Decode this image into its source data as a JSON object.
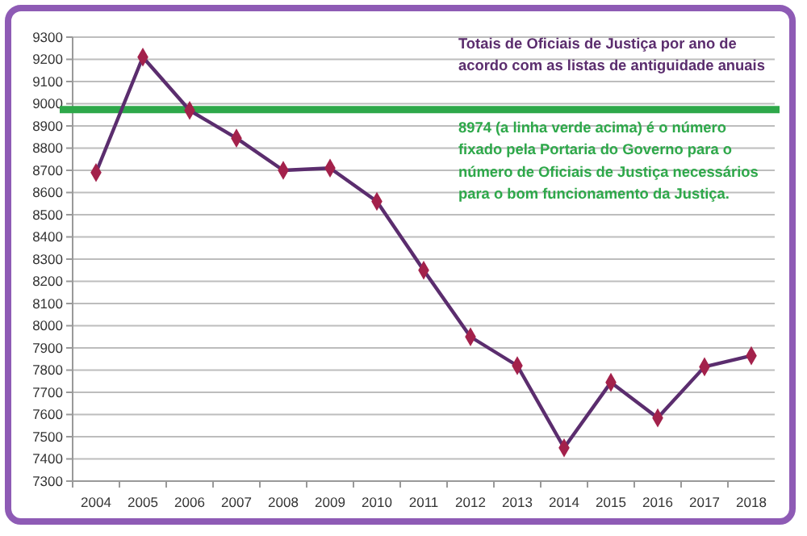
{
  "chart_data": {
    "type": "line",
    "categories": [
      "2004",
      "2005",
      "2006",
      "2007",
      "2008",
      "2009",
      "2010",
      "2011",
      "2012",
      "2013",
      "2014",
      "2015",
      "2016",
      "2017",
      "2018"
    ],
    "series": [
      {
        "color": "#5b2d6e",
        "values": [
          8690,
          9210,
          8970,
          8845,
          8700,
          8710,
          8560,
          8250,
          7950,
          7820,
          7450,
          7745,
          7585,
          7815,
          7865
        ]
      }
    ],
    "ylim": [
      7300,
      9300
    ],
    "yticks": [
      7300,
      7400,
      7500,
      7600,
      7700,
      7800,
      7900,
      8000,
      8100,
      8200,
      8300,
      8400,
      8500,
      8600,
      8700,
      8800,
      8900,
      9000,
      9100,
      9200,
      9300
    ],
    "grid": "y",
    "marker": "diamond",
    "line_style": "solid",
    "ref_lines": [
      {
        "axis": "y",
        "value": 8974,
        "color": "#2ea84a",
        "line_style": "solid"
      }
    ],
    "annotations": [
      "Totais de Oficiais de Justiça por ano de acordo com as listas de antiguidade anuais",
      "8974 (a linha verde acima) é o número fixado pela Portaria do Governo para o número de Oficiais de Justiça necessários para o bom funcionamento da Justiça."
    ]
  }
}
